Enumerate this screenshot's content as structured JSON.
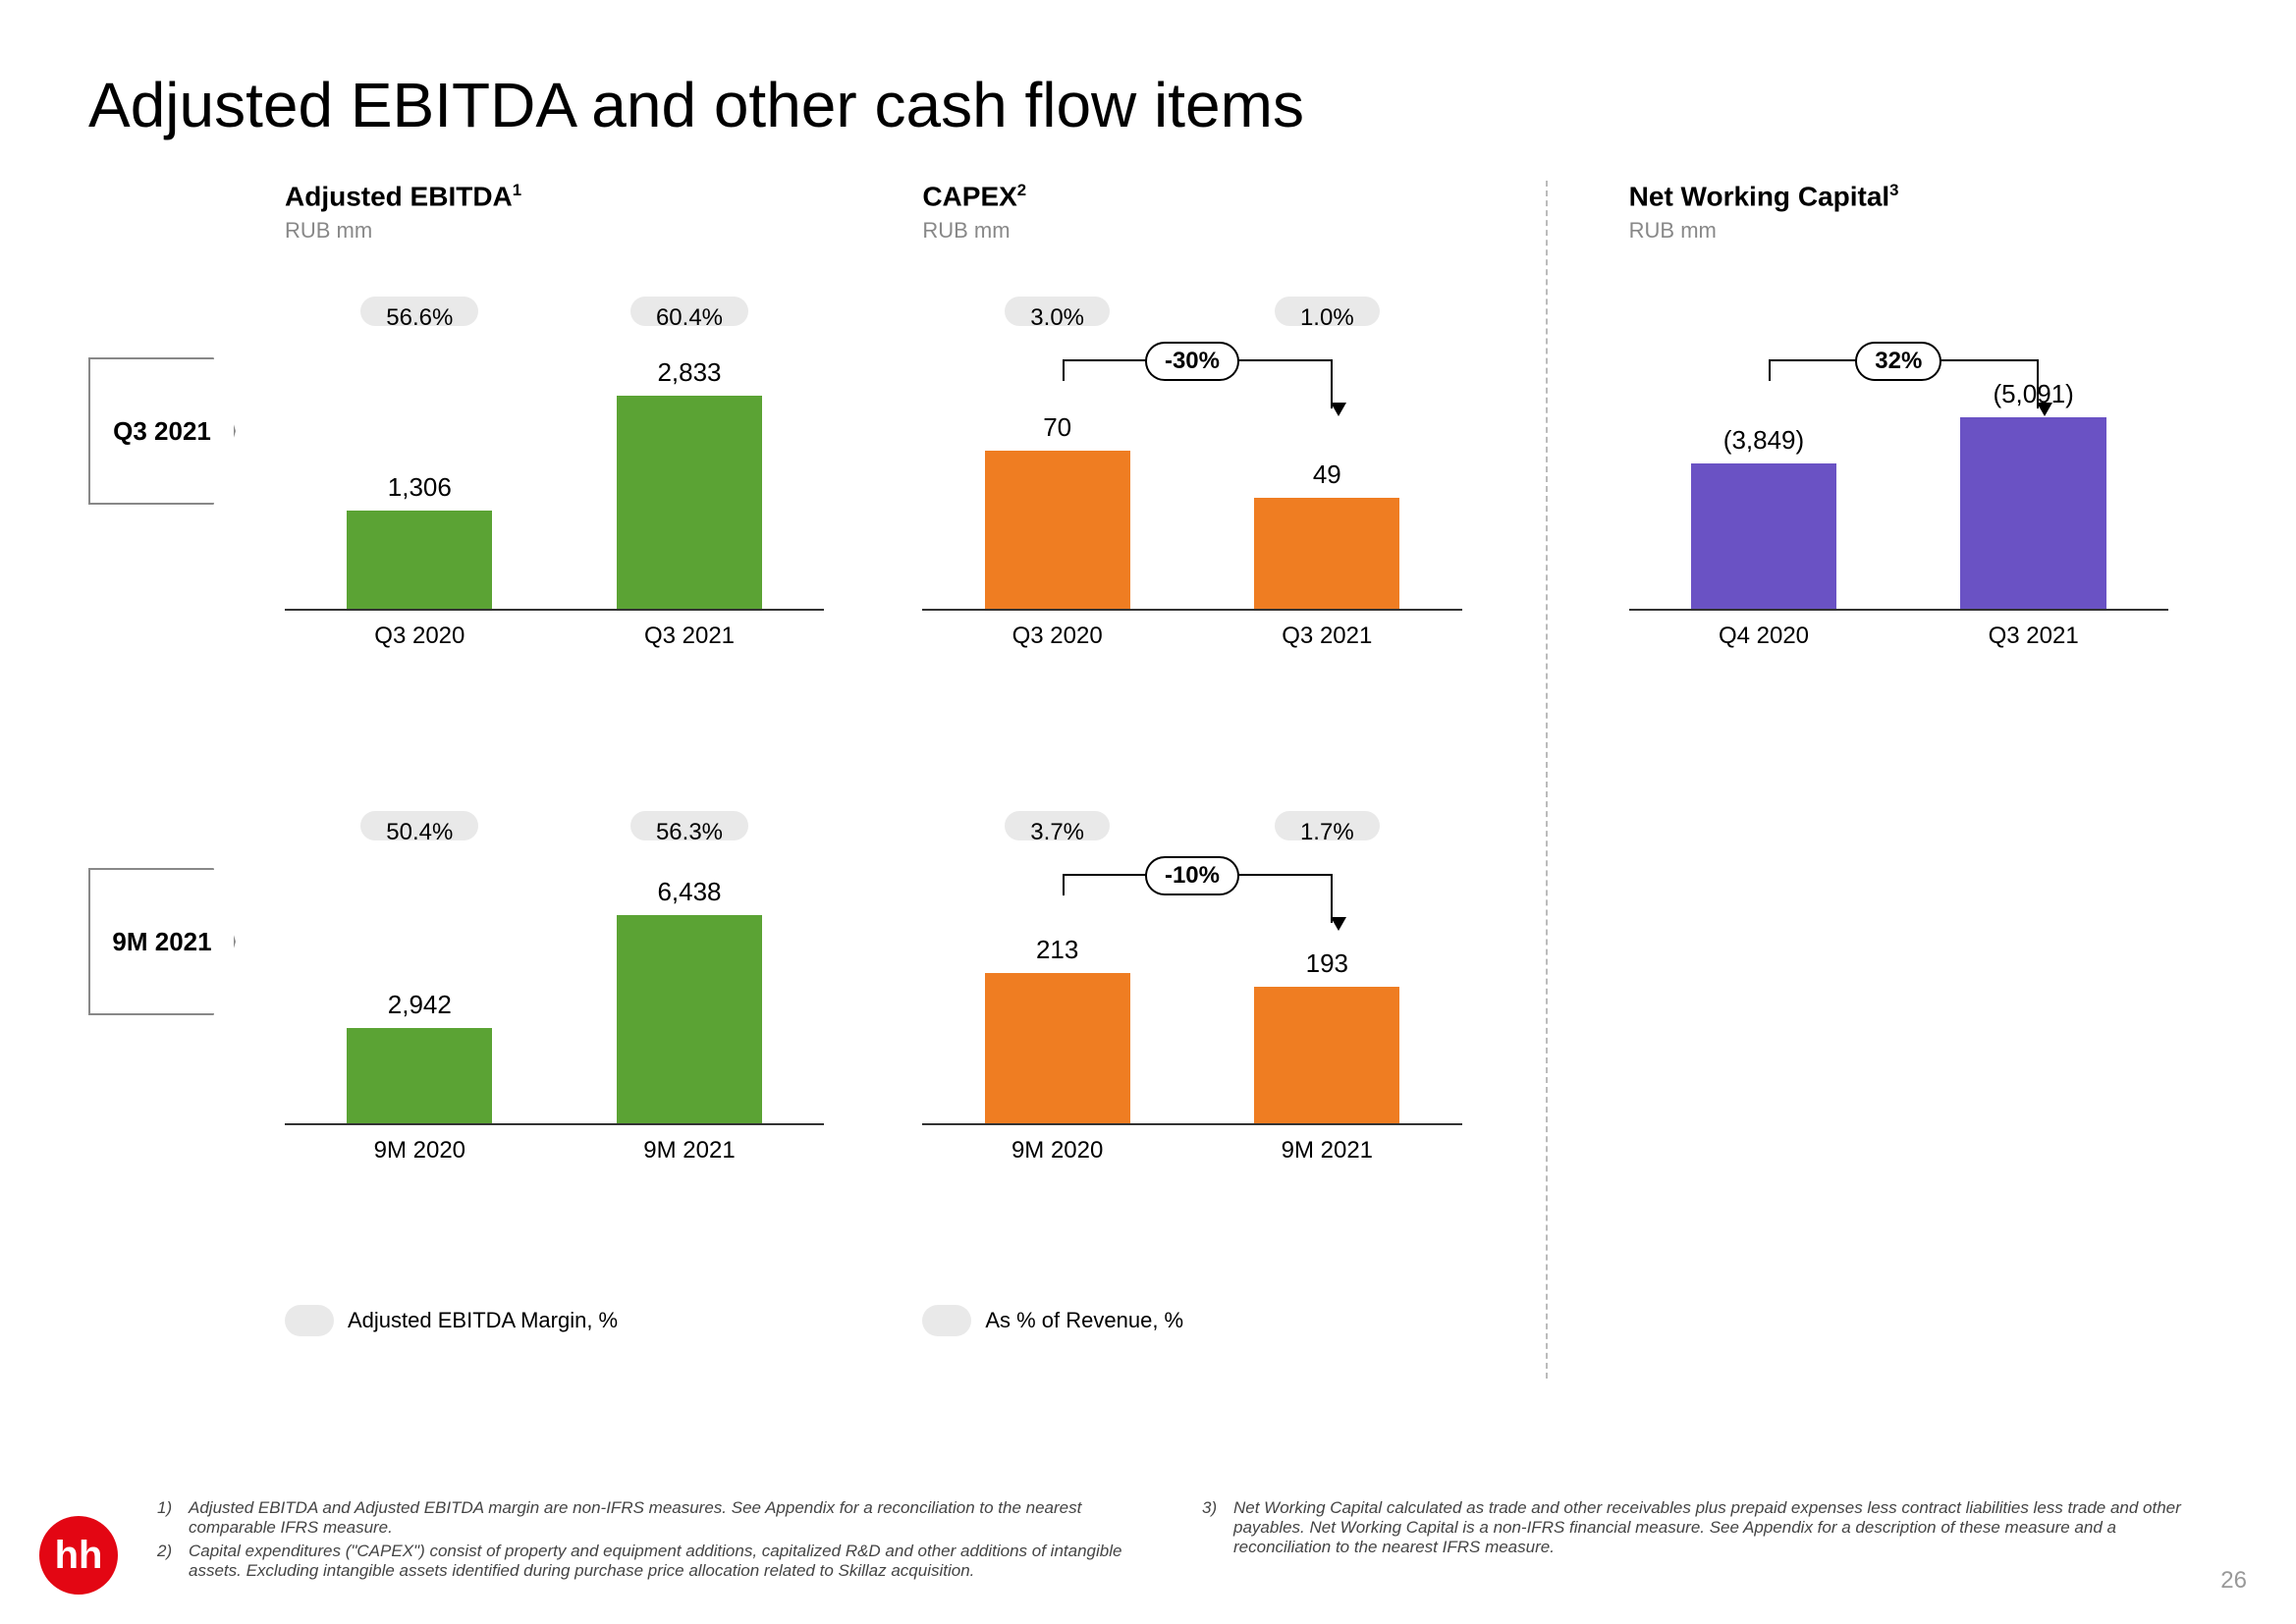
{
  "title": "Adjusted EBITDA and other cash flow items",
  "page_number": "26",
  "logo_text": "hh",
  "logo_bg": "#e30613",
  "row_labels": [
    "Q3 2021",
    "9M 2021"
  ],
  "columns": {
    "ebitda": {
      "title": "Adjusted EBITDA",
      "sup": "1",
      "sub": "RUB mm",
      "legend": "Adjusted EBITDA Margin, %"
    },
    "capex": {
      "title": "CAPEX",
      "sup": "2",
      "sub": "RUB mm",
      "legend": "As % of Revenue, %"
    },
    "nwc": {
      "title": "Net Working Capital",
      "sup": "3",
      "sub": "RUB mm"
    }
  },
  "colors": {
    "ebitda_bar": "#5ba334",
    "capex_bar": "#ef7d22",
    "nwc_bar": "#6a52c4",
    "badge_bg": "#e9e9e9",
    "axis": "#333333",
    "text_muted": "#888888"
  },
  "charts": {
    "ebitda_q3": {
      "type": "bar",
      "badges": [
        "56.6%",
        "60.4%"
      ],
      "categories": [
        "Q3 2020",
        "Q3 2021"
      ],
      "labels": [
        "1,306",
        "2,833"
      ],
      "values": [
        1306,
        2833
      ],
      "ymax": 3000,
      "bar_color": "#5ba334"
    },
    "ebitda_9m": {
      "type": "bar",
      "badges": [
        "50.4%",
        "56.3%"
      ],
      "categories": [
        "9M 2020",
        "9M 2021"
      ],
      "labels": [
        "2,942",
        "6,438"
      ],
      "values": [
        2942,
        6438
      ],
      "ymax": 7000,
      "bar_color": "#5ba334"
    },
    "capex_q3": {
      "type": "bar",
      "badges": [
        "3.0%",
        "1.0%"
      ],
      "change": "-30%",
      "categories": [
        "Q3 2020",
        "Q3 2021"
      ],
      "labels": [
        "70",
        "49"
      ],
      "values": [
        70,
        49
      ],
      "ymax": 100,
      "bar_color": "#ef7d22"
    },
    "capex_9m": {
      "type": "bar",
      "badges": [
        "3.7%",
        "1.7%"
      ],
      "change": "-10%",
      "categories": [
        "9M 2020",
        "9M 2021"
      ],
      "labels": [
        "213",
        "193"
      ],
      "values": [
        213,
        193
      ],
      "ymax": 320,
      "bar_color": "#ef7d22"
    },
    "nwc_q3": {
      "type": "bar",
      "change": "32%",
      "categories": [
        "Q4 2020",
        "Q3 2021"
      ],
      "labels": [
        "(3,849)",
        "(5,091)"
      ],
      "values": [
        3849,
        5091
      ],
      "ymax": 6000,
      "bar_color": "#6a52c4"
    }
  },
  "footnotes": [
    {
      "n": "1)",
      "t": "Adjusted EBITDA and Adjusted EBITDA margin are non-IFRS measures. See Appendix for a reconciliation to the nearest comparable IFRS measure."
    },
    {
      "n": "2)",
      "t": "Capital expenditures (\"CAPEX\") consist of property and equipment additions, capitalized R&D and other additions of intangible assets. Excluding intangible assets identified during purchase price allocation related to Skillaz acquisition."
    },
    {
      "n": "3)",
      "t": "Net Working Capital calculated as trade and other receivables plus prepaid expenses less contract liabilities less trade and other payables. Net Working Capital is a non-IFRS financial measure. See Appendix for a description of these measure and a reconciliation to the nearest IFRS measure."
    }
  ]
}
